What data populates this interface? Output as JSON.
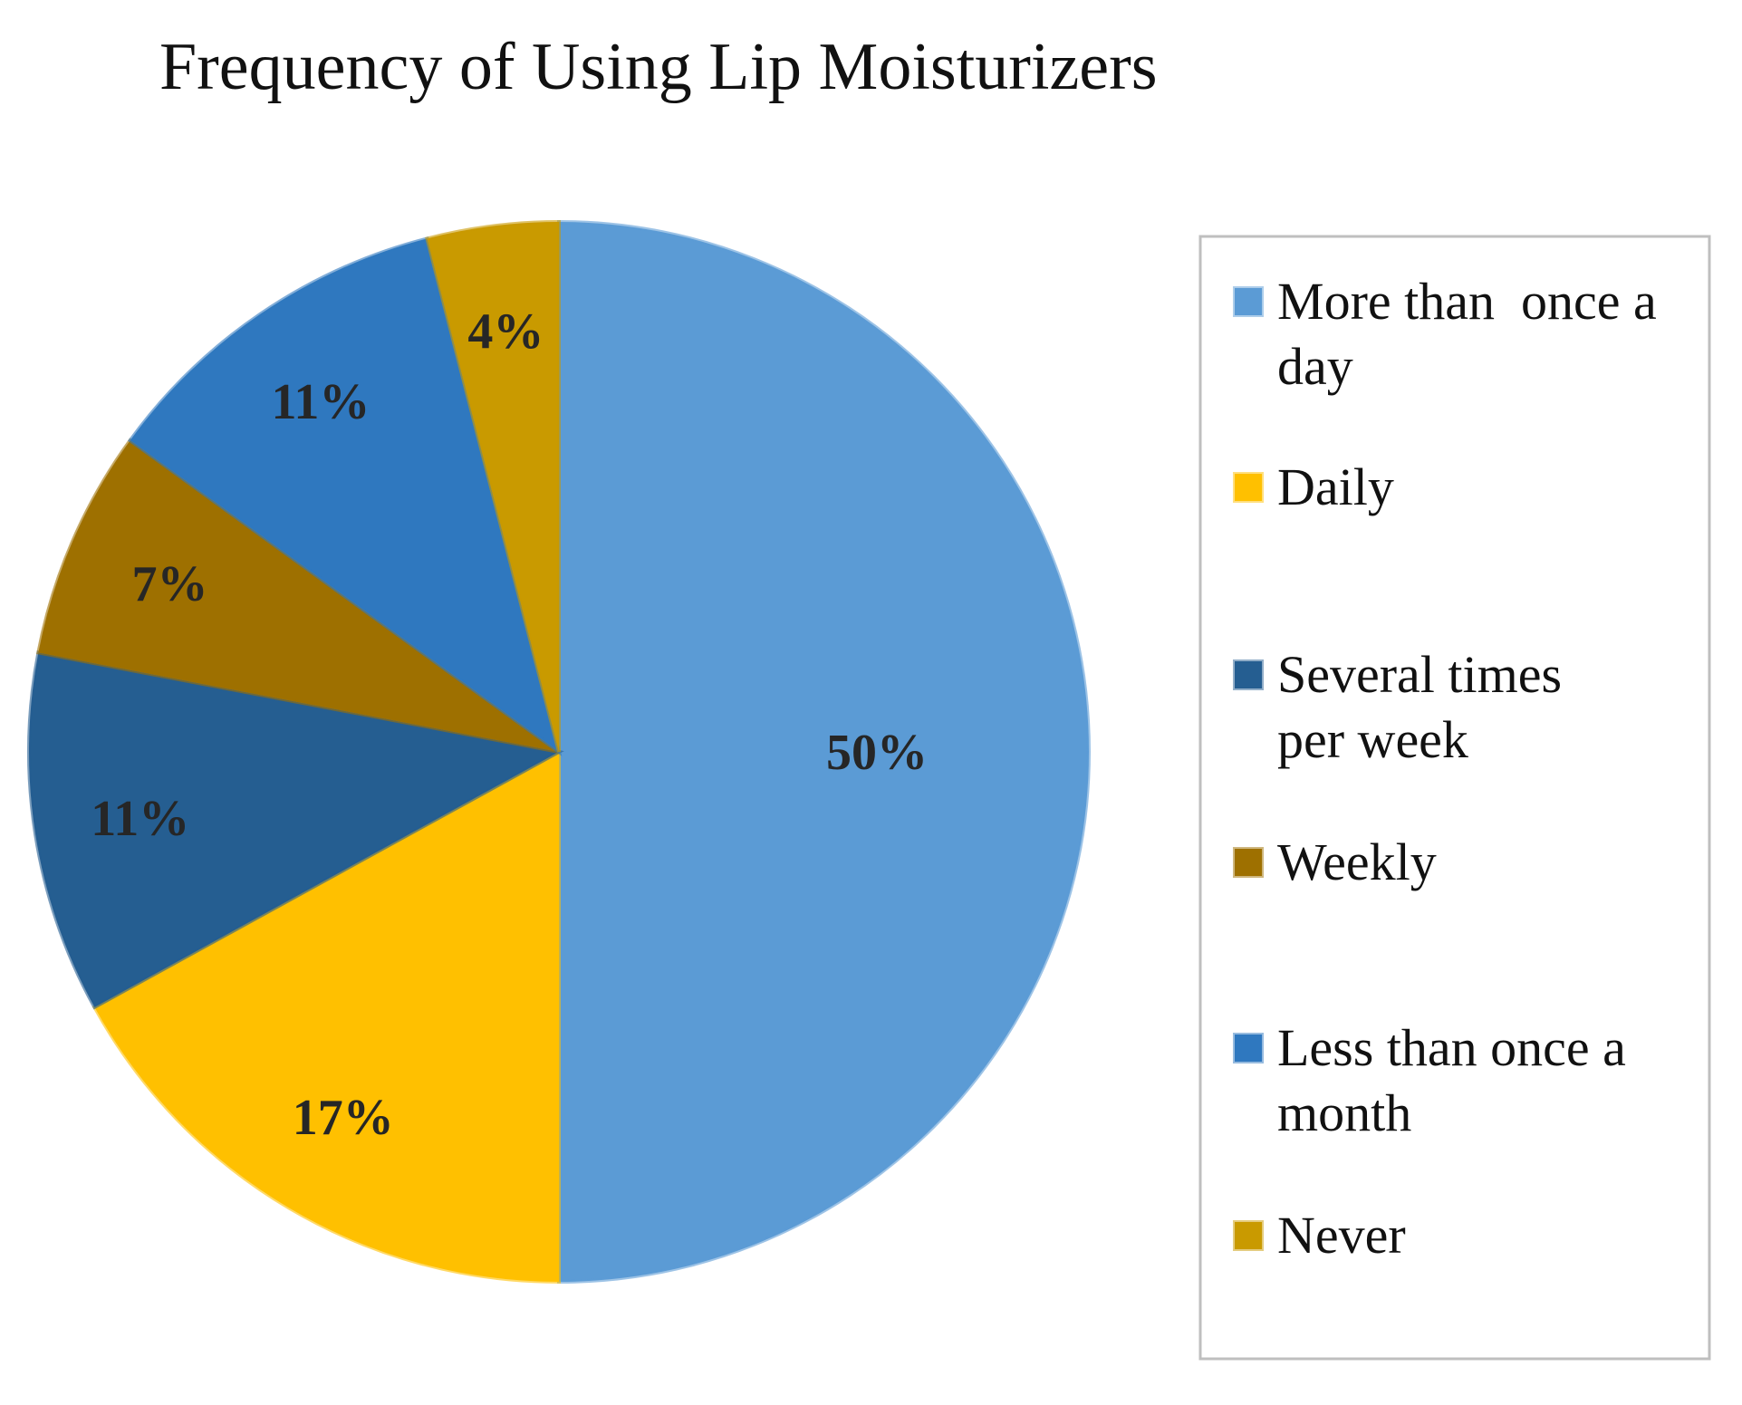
{
  "chart_data": {
    "type": "pie",
    "title": "Frequency of Using Lip Moisturizers",
    "legend_position": "right",
    "slices": [
      {
        "label": "More than  once a day",
        "legend_lines": [
          "More than  once a",
          "day"
        ],
        "value": 50,
        "data_label": "50%",
        "color": "#5B9BD5"
      },
      {
        "label": "Daily",
        "legend_lines": [
          "Daily"
        ],
        "value": 17,
        "data_label": "17%",
        "color": "#FFC000"
      },
      {
        "label": "Several times per week",
        "legend_lines": [
          "Several times",
          "per week"
        ],
        "value": 11,
        "data_label": "11%",
        "color": "#255E91"
      },
      {
        "label": "Weekly",
        "legend_lines": [
          "Weekly"
        ],
        "value": 7,
        "data_label": "7%",
        "color": "#9E7000"
      },
      {
        "label": "Less than once a month",
        "legend_lines": [
          "Less than once a",
          "month"
        ],
        "value": 11,
        "data_label": "11%",
        "color": "#2F78BF"
      },
      {
        "label": "Never",
        "legend_lines": [
          "Never"
        ],
        "value": 4,
        "data_label": "4%",
        "color": "#C99A00"
      }
    ]
  }
}
